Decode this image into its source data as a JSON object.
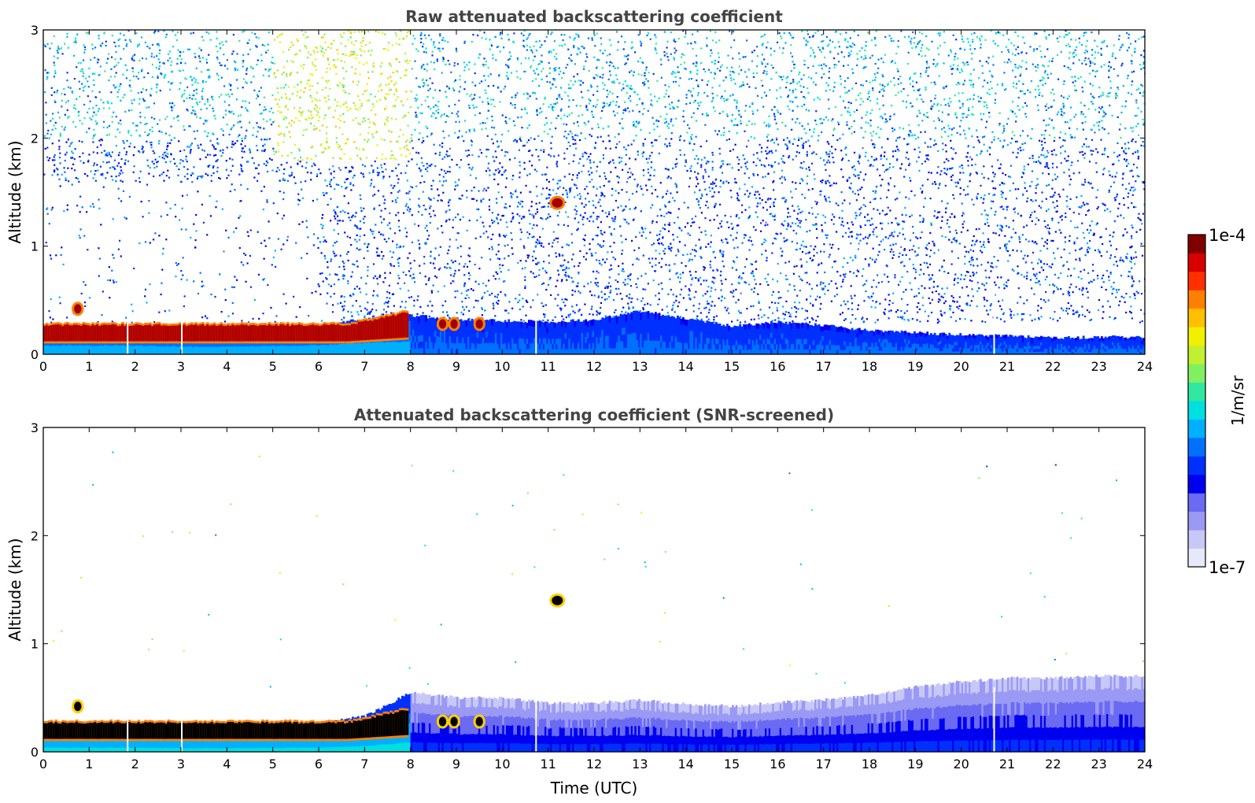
{
  "chart_data": [
    {
      "type": "heatmap",
      "title": "Raw attenuated backscattering coefficient",
      "xlabel": "",
      "ylabel": "Altitude (km)",
      "xlim": [
        0,
        24
      ],
      "ylim": [
        0,
        3
      ],
      "x_ticks": [
        "0",
        "1",
        "2",
        "3",
        "4",
        "5",
        "6",
        "7",
        "8",
        "9",
        "10",
        "11",
        "12",
        "13",
        "14",
        "15",
        "16",
        "17",
        "18",
        "19",
        "20",
        "21",
        "22",
        "23",
        "24"
      ],
      "y_ticks": [
        "0",
        "1",
        "2",
        "3"
      ],
      "features": {
        "boundary_layer_top_km": [
          0.25,
          0.25,
          0.25,
          0.22,
          0.22,
          0.24,
          0.26,
          0.33,
          0.36,
          0.32,
          0.31,
          0.3,
          0.32,
          0.4,
          0.33,
          0.26,
          0.3,
          0.27,
          0.22,
          0.2,
          0.18,
          0.17,
          0.15,
          0.16,
          0.16
        ],
        "aerosol_layer_max_km": [
          0.28,
          0.28,
          0.28,
          0.26,
          0.26,
          0.28,
          0.3,
          0.38,
          0.4,
          0.37,
          0.33,
          0.32,
          0.34,
          0.42,
          0.36,
          0.3,
          0.34,
          0.3,
          0.26,
          0.24,
          0.22,
          0.21,
          0.2,
          0.2,
          0.2
        ],
        "low_cloud": {
          "time_start": 0,
          "time_end": 7.9,
          "altitude_km": [
            0.12,
            0.32
          ]
        },
        "cloud_patches": [
          {
            "time": 0.75,
            "altitude_km": 0.42
          },
          {
            "time": 8.7,
            "altitude_km": 0.28
          },
          {
            "time": 8.95,
            "altitude_km": 0.28
          },
          {
            "time": 9.5,
            "altitude_km": 0.28
          },
          {
            "time": 11.2,
            "altitude_km": 1.4
          }
        ],
        "data_gaps_utc": [
          1.82,
          3.0,
          10.72,
          20.7
        ]
      }
    },
    {
      "type": "heatmap",
      "title": "Attenuated backscattering coefficient (SNR-screened)",
      "xlabel": "Time (UTC)",
      "ylabel": "Altitude (km)",
      "xlim": [
        0,
        24
      ],
      "ylim": [
        0,
        3
      ],
      "x_ticks": [
        "0",
        "1",
        "2",
        "3",
        "4",
        "5",
        "6",
        "7",
        "8",
        "9",
        "10",
        "11",
        "12",
        "13",
        "14",
        "15",
        "16",
        "17",
        "18",
        "19",
        "20",
        "21",
        "22",
        "23",
        "24"
      ],
      "y_ticks": [
        "0",
        "1",
        "2",
        "3"
      ],
      "features": {
        "screened_layer_top_km": [
          0.25,
          0.25,
          0.25,
          0.22,
          0.22,
          0.24,
          0.26,
          0.33,
          0.55,
          0.5,
          0.5,
          0.45,
          0.45,
          0.48,
          0.44,
          0.42,
          0.46,
          0.48,
          0.52,
          0.6,
          0.65,
          0.68,
          0.68,
          0.7,
          0.7
        ],
        "low_cloud": {
          "time_start": 0,
          "time_end": 7.9,
          "altitude_km": [
            0.12,
            0.32
          ]
        },
        "cloud_patches": [
          {
            "time": 0.75,
            "altitude_km": 0.42
          },
          {
            "time": 8.7,
            "altitude_km": 0.28
          },
          {
            "time": 8.95,
            "altitude_km": 0.28
          },
          {
            "time": 9.5,
            "altitude_km": 0.28
          },
          {
            "time": 11.2,
            "altitude_km": 1.4
          }
        ],
        "data_gaps_utc": [
          1.82,
          3.0,
          10.72,
          20.7
        ]
      }
    }
  ],
  "colorbar": {
    "label": "1/m/sr",
    "max_label": "1e-4",
    "min_label": "1e-7",
    "scale": "log",
    "colormap": [
      "#e8e8fb",
      "#c8c8f8",
      "#9a9af5",
      "#6a6af2",
      "#0000f0",
      "#0030ff",
      "#0070ff",
      "#00b0ff",
      "#00e0e0",
      "#30e8a0",
      "#80f060",
      "#c0f030",
      "#f0f000",
      "#ffc000",
      "#ff8000",
      "#ff3000",
      "#d80000",
      "#800000"
    ]
  }
}
